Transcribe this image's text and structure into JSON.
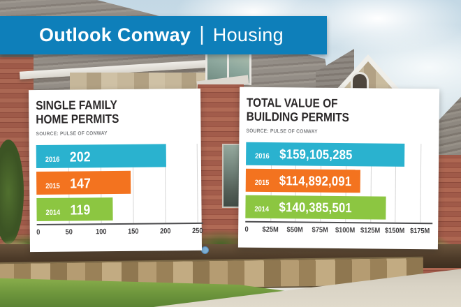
{
  "banner": {
    "title_bold": "Outlook Conway",
    "separator": "|",
    "title_light": "Housing",
    "bg_color": "#0e7fba"
  },
  "chart_data": [
    {
      "type": "bar",
      "orientation": "horizontal",
      "title": "SINGLE FAMILY HOME PERMITS",
      "title_lines": [
        "SINGLE FAMILY",
        "HOME PERMITS"
      ],
      "source": "SOURCE: PULSE OF CONWAY",
      "categories": [
        "2016",
        "2015",
        "2014"
      ],
      "values": [
        202,
        147,
        119
      ],
      "value_labels": [
        "202",
        "147",
        "119"
      ],
      "bar_colors": [
        "#2ab2cf",
        "#f3731f",
        "#8cc641"
      ],
      "xlim": [
        0,
        250
      ],
      "xticks": [
        0,
        50,
        100,
        150,
        200,
        250
      ],
      "xtick_labels": [
        "0",
        "50",
        "100",
        "150",
        "200",
        "250"
      ],
      "grid": "vertical-gridlines",
      "legend": "none"
    },
    {
      "type": "bar",
      "orientation": "horizontal",
      "title": "TOTAL VALUE OF BUILDING PERMITS",
      "title_lines": [
        "TOTAL VALUE OF",
        "BUILDING PERMITS"
      ],
      "source": "SOURCE: PULSE OF CONWAY",
      "categories": [
        "2016",
        "2015",
        "2014"
      ],
      "values": [
        159105285,
        114892091,
        140385501
      ],
      "value_labels": [
        "$159,105,285",
        "$114,892,091",
        "$140,385,501"
      ],
      "bar_colors": [
        "#2ab2cf",
        "#f3731f",
        "#8cc641"
      ],
      "xlim": [
        0,
        175000000
      ],
      "xticks": [
        0,
        25000000,
        50000000,
        75000000,
        100000000,
        125000000,
        150000000,
        175000000
      ],
      "xtick_labels": [
        "0",
        "$25M",
        "$50M",
        "$75M",
        "$100M",
        "$125M",
        "$150M",
        "$175M"
      ],
      "grid": "vertical-gridlines",
      "legend": "none"
    }
  ]
}
